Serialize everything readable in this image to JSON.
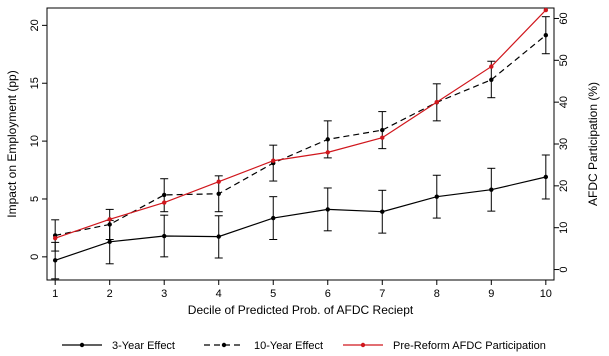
{
  "chart_data": {
    "type": "line",
    "title": "",
    "xlabel": "Decile of Predicted Prob. of AFDC Reciept",
    "ylabel": "Impact on Employment (pp)",
    "y2label": "AFDC Participation (%)",
    "x": [
      1,
      2,
      3,
      4,
      5,
      6,
      7,
      8,
      9,
      10
    ],
    "xlim": [
      0.85,
      10.15
    ],
    "xticks": [
      "1",
      "2",
      "3",
      "4",
      "5",
      "6",
      "7",
      "8",
      "9",
      "10"
    ],
    "ylim": [
      -2,
      21.5
    ],
    "yticks": [
      "0",
      "5",
      "10",
      "15",
      "20"
    ],
    "y2lim": [
      -2.5,
      62.5
    ],
    "y2ticks": [
      "0",
      "10",
      "20",
      "30",
      "40",
      "50",
      "60"
    ],
    "grid": false,
    "legend_position": "bottom",
    "series": [
      {
        "name": "3-Year Effect",
        "axis": "left",
        "style": "solid",
        "color": "#000000",
        "values": [
          -0.3,
          1.3,
          1.8,
          1.75,
          3.35,
          4.1,
          3.9,
          5.2,
          5.8,
          6.9
        ],
        "ci_low": [
          -1.9,
          -0.6,
          0.0,
          -0.1,
          1.5,
          2.25,
          2.05,
          3.35,
          3.95,
          5.0
        ],
        "ci_high": [
          1.25,
          3.15,
          3.6,
          3.55,
          5.2,
          5.95,
          5.75,
          7.05,
          7.65,
          8.8
        ]
      },
      {
        "name": "10-Year Effect",
        "axis": "left",
        "style": "dashed",
        "color": "#000000",
        "values": [
          1.85,
          2.8,
          5.35,
          5.45,
          8.1,
          10.15,
          10.95,
          13.35,
          15.3,
          19.15
        ],
        "ci_low": [
          0.5,
          1.5,
          3.9,
          3.9,
          6.55,
          8.55,
          9.35,
          11.75,
          13.75,
          17.55
        ],
        "ci_high": [
          3.2,
          4.1,
          6.75,
          7.0,
          9.65,
          11.75,
          12.55,
          14.95,
          16.9,
          20.75
        ]
      },
      {
        "name": "Pre-Reform AFDC Participation",
        "axis": "right",
        "style": "solid",
        "color": "#d0171d",
        "values": [
          7.5,
          12.0,
          16.0,
          21.0,
          26.0,
          28.0,
          31.5,
          40.0,
          48.5,
          62.0
        ]
      }
    ]
  }
}
